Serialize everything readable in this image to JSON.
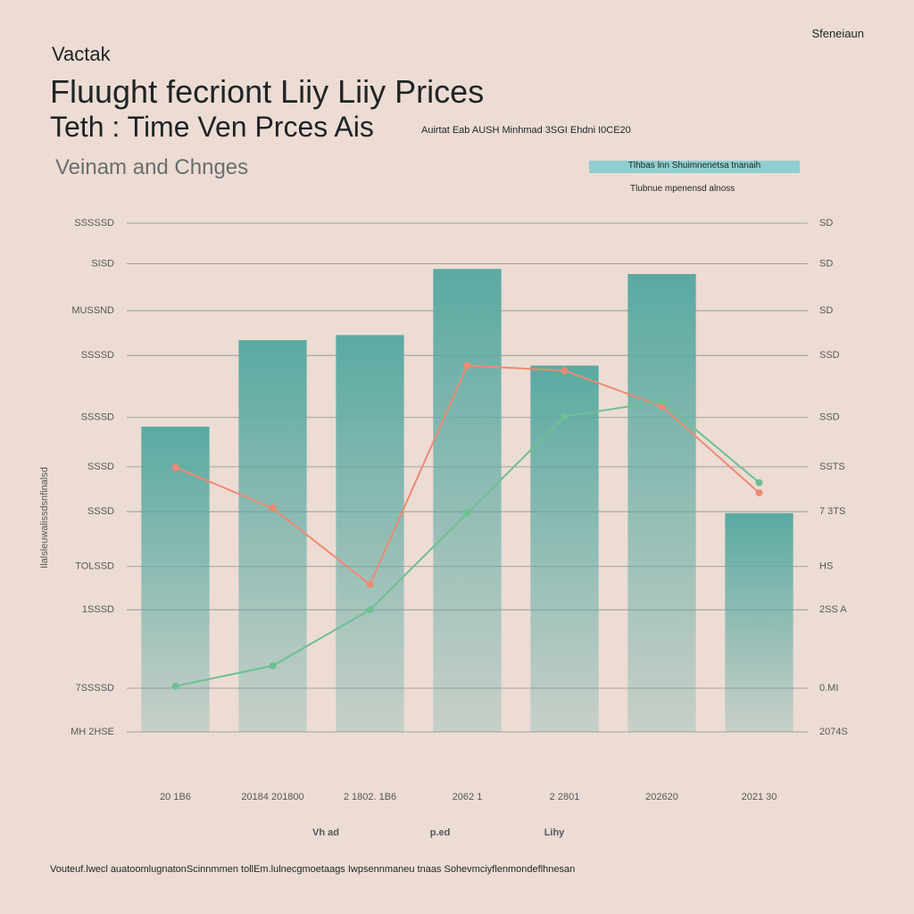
{
  "header": {
    "kicker": "Vactak",
    "title": "Fluught fecriont Liiy Liiy Prices",
    "title2": "Teth : Time Ven Prces Ais",
    "aside": "Auirtat Eab AUSH Minhmad 3SGI Ehdni I0CE20",
    "subtitle": "Veinam and Chnges",
    "corner": "Sfeneiaun",
    "banner": "Tlhbas lnn Shuimnenetsa tnanaih",
    "banner_sub": "Tlubnue mpenensd alnoss"
  },
  "chart_data": {
    "type": "bar",
    "y_label": "Ilalsleuwalissdsnfinalsd",
    "categories": [
      "20 1B6",
      "20184 201800",
      "2 1802. 1B6",
      "2062 1",
      "2 2801",
      "202620",
      "2021 30"
    ],
    "series": [
      {
        "name": "Vh ad",
        "type": "bar",
        "color": "#5aaaa2",
        "values": [
          60,
          77,
          78,
          91,
          72,
          90,
          43
        ]
      },
      {
        "name": "p.ed",
        "type": "line",
        "color": "#ee8a72",
        "values": [
          52,
          44,
          29,
          72,
          71,
          64,
          47
        ]
      },
      {
        "name": "Lihy",
        "type": "line",
        "color": "#6fbf94",
        "values": [
          9,
          13,
          24,
          43,
          62,
          65,
          49
        ]
      }
    ],
    "ylim": [
      0,
      100
    ],
    "yticks": [
      {
        "value": 100,
        "label": "SSSSSD"
      },
      {
        "value": 92,
        "label": "SISD"
      },
      {
        "value": 82.8,
        "label": "MUSSND"
      },
      {
        "value": 74,
        "label": "SSSSD"
      },
      {
        "value": 61.8,
        "label": "SSSSD"
      },
      {
        "value": 52.1,
        "label": "SSSD"
      },
      {
        "value": 43.3,
        "label": "SSSD"
      },
      {
        "value": 32.5,
        "label": "TOLSSD"
      },
      {
        "value": 24,
        "label": "1SSSD"
      },
      {
        "value": 8.6,
        "label": "7SSSSD"
      },
      {
        "value": 0,
        "label": "MH 2HSE"
      }
    ],
    "right_labels": [
      "SD",
      "SD",
      "SD",
      "SSD",
      "SSD",
      "SSTS",
      "7 3TS",
      "HS",
      "2SS A",
      "0.MI",
      "2074S"
    ],
    "grid": true
  },
  "footnote": "Vouteuf.lwecl auatoomlugnatonScinnmmen tollEm.lulnecgmoetaags Iwpsennmaneu tnaas Sohevmciyflenmondeflhnesan"
}
